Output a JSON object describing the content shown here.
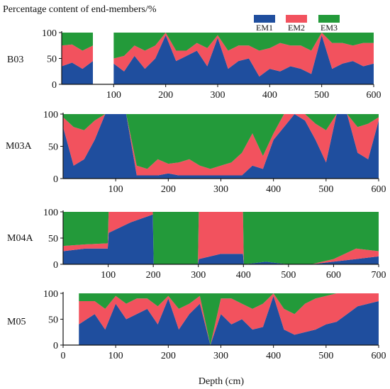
{
  "figure": {
    "ylabel": "Percentage content of end-members/%",
    "xlabel": "Depth (cm)"
  },
  "legend": [
    {
      "name": "EM1",
      "color": "#1f4e9e"
    },
    {
      "name": "EM2",
      "color": "#f2525e"
    },
    {
      "name": "EM3",
      "color": "#239a3a"
    }
  ],
  "chart_data": [
    {
      "type": "area",
      "stacked": true,
      "title": "B03",
      "xlim": [
        0,
        600
      ],
      "ylim": [
        0,
        100
      ],
      "xticks": [
        100,
        200,
        300,
        400,
        500,
        600
      ],
      "yticks": [
        0,
        50,
        100
      ],
      "gaps": [
        [
          60,
          100
        ]
      ],
      "x": [
        0,
        20,
        40,
        60,
        100,
        120,
        140,
        160,
        180,
        200,
        220,
        240,
        260,
        280,
        300,
        320,
        340,
        360,
        380,
        400,
        420,
        440,
        460,
        480,
        500,
        520,
        540,
        560,
        580,
        600
      ],
      "series": [
        {
          "name": "EM1",
          "values": [
            35,
            42,
            30,
            45,
            40,
            25,
            55,
            30,
            50,
            95,
            45,
            55,
            65,
            35,
            90,
            30,
            45,
            50,
            15,
            30,
            25,
            35,
            30,
            20,
            95,
            30,
            40,
            45,
            35,
            40
          ]
        },
        {
          "name": "EM2",
          "values": [
            40,
            35,
            35,
            30,
            10,
            30,
            20,
            35,
            25,
            5,
            20,
            10,
            15,
            35,
            5,
            35,
            30,
            25,
            50,
            40,
            55,
            40,
            45,
            45,
            5,
            50,
            40,
            30,
            45,
            40
          ]
        },
        {
          "name": "EM3",
          "values": [
            25,
            23,
            35,
            25,
            50,
            45,
            25,
            35,
            25,
            0,
            35,
            35,
            20,
            30,
            5,
            35,
            25,
            25,
            35,
            30,
            20,
            25,
            25,
            35,
            0,
            20,
            20,
            25,
            20,
            20
          ]
        }
      ]
    },
    {
      "type": "area",
      "stacked": true,
      "title": "M03A",
      "xlim": [
        0,
        600
      ],
      "ylim": [
        0,
        100
      ],
      "xticks": [
        100,
        200,
        300,
        400,
        500,
        600
      ],
      "yticks": [
        0,
        50,
        100
      ],
      "x": [
        0,
        20,
        40,
        60,
        80,
        100,
        120,
        140,
        160,
        180,
        200,
        220,
        240,
        260,
        280,
        300,
        320,
        340,
        360,
        380,
        400,
        420,
        440,
        460,
        480,
        500,
        520,
        540,
        560,
        580,
        600
      ],
      "series": [
        {
          "name": "EM1",
          "values": [
            80,
            20,
            30,
            60,
            100,
            100,
            100,
            5,
            5,
            5,
            8,
            5,
            5,
            5,
            5,
            5,
            5,
            5,
            20,
            15,
            60,
            80,
            100,
            90,
            60,
            25,
            100,
            100,
            40,
            30,
            90
          ]
        },
        {
          "name": "EM2",
          "values": [
            15,
            60,
            45,
            30,
            0,
            0,
            0,
            15,
            10,
            25,
            15,
            20,
            25,
            15,
            10,
            15,
            20,
            35,
            50,
            20,
            10,
            20,
            0,
            10,
            25,
            50,
            0,
            0,
            40,
            55,
            5
          ]
        },
        {
          "name": "EM3",
          "values": [
            5,
            20,
            25,
            10,
            0,
            0,
            0,
            80,
            85,
            70,
            77,
            75,
            70,
            80,
            85,
            80,
            75,
            60,
            30,
            65,
            30,
            0,
            0,
            0,
            15,
            25,
            0,
            0,
            20,
            15,
            5
          ]
        }
      ]
    },
    {
      "type": "area",
      "stacked": true,
      "title": "M04A",
      "xlim": [
        0,
        700
      ],
      "ylim": [
        0,
        100
      ],
      "xticks": [
        100,
        200,
        300,
        400,
        500,
        600,
        700
      ],
      "yticks": [
        0,
        50,
        100
      ],
      "x": [
        0,
        50,
        99,
        101,
        150,
        199,
        201,
        250,
        299,
        301,
        350,
        399,
        401,
        450,
        500,
        550,
        600,
        650,
        700
      ],
      "series": [
        {
          "name": "EM1",
          "values": [
            25,
            30,
            30,
            60,
            80,
            95,
            0,
            0,
            0,
            10,
            20,
            20,
            0,
            5,
            0,
            0,
            5,
            10,
            15
          ]
        },
        {
          "name": "EM2",
          "values": [
            10,
            8,
            10,
            40,
            20,
            5,
            0,
            0,
            0,
            90,
            80,
            80,
            0,
            0,
            0,
            0,
            5,
            20,
            10
          ]
        },
        {
          "name": "EM3",
          "values": [
            65,
            62,
            60,
            0,
            0,
            0,
            100,
            100,
            100,
            0,
            0,
            0,
            100,
            95,
            100,
            100,
            90,
            70,
            75
          ]
        }
      ]
    },
    {
      "type": "area",
      "stacked": true,
      "title": "M05",
      "xlim": [
        0,
        600
      ],
      "ylim": [
        0,
        100
      ],
      "xticks": [
        0,
        100,
        200,
        300,
        400,
        500,
        600
      ],
      "yticks": [
        0,
        50,
        100
      ],
      "x": [
        30,
        60,
        80,
        100,
        120,
        140,
        160,
        180,
        200,
        220,
        240,
        260,
        280,
        300,
        320,
        340,
        360,
        380,
        400,
        420,
        440,
        460,
        480,
        500,
        520,
        540,
        560,
        580,
        600
      ],
      "series": [
        {
          "name": "EM1",
          "values": [
            40,
            60,
            30,
            80,
            50,
            60,
            70,
            40,
            90,
            30,
            60,
            80,
            0,
            60,
            40,
            50,
            30,
            35,
            95,
            30,
            20,
            25,
            30,
            40,
            45,
            60,
            75,
            80,
            85
          ]
        },
        {
          "name": "EM2",
          "values": [
            45,
            25,
            40,
            15,
            30,
            30,
            20,
            35,
            5,
            40,
            20,
            15,
            0,
            30,
            50,
            30,
            40,
            45,
            5,
            40,
            40,
            55,
            60,
            55,
            55,
            40,
            25,
            20,
            15
          ]
        },
        {
          "name": "EM3",
          "values": [
            15,
            15,
            30,
            5,
            20,
            10,
            10,
            25,
            5,
            30,
            20,
            5,
            100,
            10,
            10,
            20,
            30,
            20,
            0,
            30,
            40,
            20,
            10,
            5,
            0,
            0,
            0,
            0,
            0
          ]
        }
      ]
    }
  ]
}
